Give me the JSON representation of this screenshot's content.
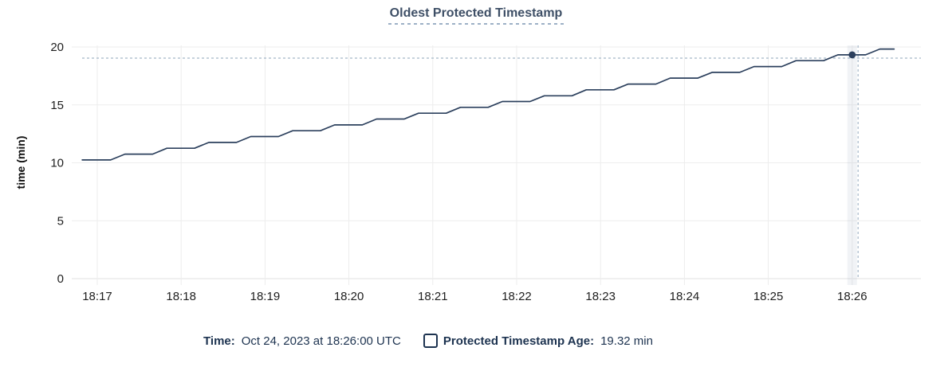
{
  "title": "Oldest Protected Timestamp",
  "legend": {
    "time_label": "Time:",
    "time_value": "Oct 24, 2023 at 18:26:00 UTC",
    "series_label": "Protected Timestamp Age:",
    "series_value": "19.32 min"
  },
  "colors": {
    "title": "#3e4f66",
    "title_underline": "#9db0c6",
    "line": "#2c405d",
    "dot": "#2c405d",
    "crosshair": "#a3b6c8",
    "grid": "#ededed",
    "axis_baseline": "#e2e2e2",
    "tick_text": "#1e1e1e",
    "axis_title_text": "#111111",
    "legend_text": "#1d3350",
    "hover_band": "#8fa3b8"
  },
  "chart_data": {
    "type": "line",
    "title": "Oldest Protected Timestamp",
    "xlabel": "",
    "ylabel": "time (min)",
    "x_ticks": [
      "18:17",
      "18:18",
      "18:19",
      "18:20",
      "18:21",
      "18:22",
      "18:23",
      "18:24",
      "18:25",
      "18:26"
    ],
    "y_ticks": [
      0,
      5,
      10,
      15,
      20
    ],
    "ylim": [
      0,
      20
    ],
    "grid": true,
    "legend_position": "bottom",
    "x_unit": "minutes after 18:17 (UTC), Oct 24, 2023",
    "series": [
      {
        "name": "Protected Timestamp Age",
        "unit": "min",
        "style": "stepped-line",
        "points": [
          [
            -0.18,
            10.25
          ],
          [
            0.16,
            10.25
          ],
          [
            0.33,
            10.75
          ],
          [
            0.66,
            10.75
          ],
          [
            0.83,
            11.26
          ],
          [
            1.16,
            11.26
          ],
          [
            1.33,
            11.76
          ],
          [
            1.66,
            11.76
          ],
          [
            1.83,
            12.27
          ],
          [
            2.16,
            12.27
          ],
          [
            2.33,
            12.77
          ],
          [
            2.66,
            12.77
          ],
          [
            2.83,
            13.27
          ],
          [
            3.16,
            13.27
          ],
          [
            3.33,
            13.78
          ],
          [
            3.66,
            13.78
          ],
          [
            3.83,
            14.28
          ],
          [
            4.16,
            14.28
          ],
          [
            4.33,
            14.79
          ],
          [
            4.66,
            14.79
          ],
          [
            4.83,
            15.29
          ],
          [
            5.16,
            15.29
          ],
          [
            5.33,
            15.79
          ],
          [
            5.66,
            15.79
          ],
          [
            5.83,
            16.3
          ],
          [
            6.16,
            16.3
          ],
          [
            6.33,
            16.8
          ],
          [
            6.66,
            16.8
          ],
          [
            6.83,
            17.31
          ],
          [
            7.16,
            17.31
          ],
          [
            7.33,
            17.81
          ],
          [
            7.66,
            17.81
          ],
          [
            7.83,
            18.31
          ],
          [
            8.16,
            18.31
          ],
          [
            8.33,
            18.82
          ],
          [
            8.66,
            18.82
          ],
          [
            8.83,
            19.32
          ],
          [
            9.16,
            19.32
          ],
          [
            9.33,
            19.82
          ],
          [
            9.5,
            19.82
          ]
        ]
      }
    ],
    "hover": {
      "hovered_time_label": "18:26",
      "point": [
        9.0,
        19.32
      ],
      "crosshair": [
        9.07,
        19.04
      ],
      "time_value": "Oct 24, 2023 at 18:26:00 UTC",
      "age_value": "19.32 min"
    }
  }
}
